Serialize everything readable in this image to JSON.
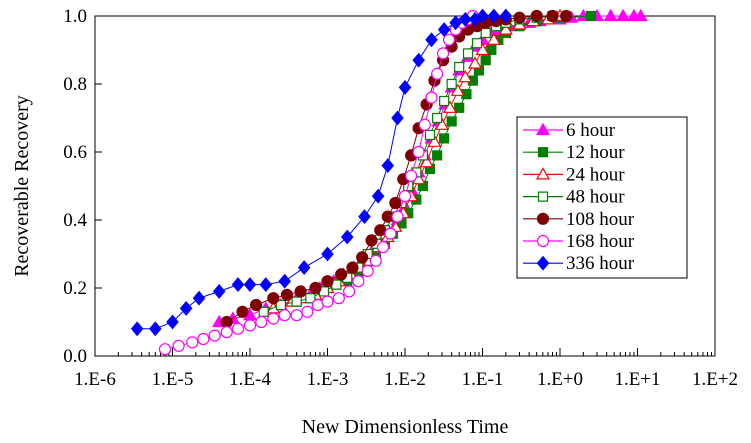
{
  "chart_data": {
    "type": "scatter",
    "title": "",
    "xlabel": "New Dimensionless Time",
    "ylabel": "Recoverable Recovery",
    "x_scale": "log",
    "xlim": [
      1e-06,
      100
    ],
    "ylim": [
      0,
      1
    ],
    "x_tick_labels": [
      "1.E-6",
      "1.E-5",
      "1.E-4",
      "1.E-3",
      "1.E-2",
      "1.E-1",
      "1.E+0",
      "1.E+1",
      "1.E+2"
    ],
    "y_tick_labels": [
      "0.0",
      "0.2",
      "0.4",
      "0.6",
      "0.8",
      "1.0"
    ],
    "y_ticks": [
      0,
      0.2,
      0.4,
      0.6,
      0.8,
      1.0
    ],
    "grid": false,
    "legend_position": "right",
    "series": [
      {
        "name": "6 hour",
        "color": "#ff00ff",
        "marker": "triangle",
        "filled": true,
        "x": [
          4e-05,
          6e-05,
          0.0001,
          0.00016,
          0.00025,
          0.0004,
          0.0006,
          0.0008,
          0.0012,
          0.0016,
          0.0022,
          0.003,
          0.0038,
          0.005,
          0.0065,
          0.008,
          0.01,
          0.012,
          0.015,
          0.018,
          0.022,
          0.027,
          0.033,
          0.04,
          0.05,
          0.065,
          0.08,
          0.1,
          0.13,
          0.17,
          0.22,
          0.3,
          0.4,
          0.55,
          0.75,
          1.0,
          1.4,
          2.0,
          3.0,
          4.5,
          6.5,
          9.0,
          11.0
        ],
        "y": [
          0.1,
          0.11,
          0.12,
          0.14,
          0.15,
          0.17,
          0.18,
          0.2,
          0.22,
          0.24,
          0.26,
          0.28,
          0.31,
          0.33,
          0.36,
          0.4,
          0.44,
          0.49,
          0.54,
          0.59,
          0.64,
          0.69,
          0.74,
          0.79,
          0.84,
          0.88,
          0.91,
          0.93,
          0.95,
          0.96,
          0.97,
          0.975,
          0.98,
          0.985,
          0.99,
          0.99,
          0.995,
          1.0,
          1.0,
          1.0,
          1.0,
          1.0,
          1.0
        ]
      },
      {
        "name": "12 hour",
        "color": "#007f00",
        "marker": "square",
        "filled": true,
        "x": [
          0.00025,
          0.0004,
          0.0006,
          0.0009,
          0.0013,
          0.0018,
          0.0025,
          0.0032,
          0.0042,
          0.0055,
          0.007,
          0.009,
          0.011,
          0.014,
          0.017,
          0.021,
          0.026,
          0.032,
          0.04,
          0.05,
          0.062,
          0.075,
          0.09,
          0.11,
          0.13,
          0.16,
          0.2,
          0.3,
          0.5,
          1.0,
          2.5
        ],
        "y": [
          0.15,
          0.16,
          0.17,
          0.19,
          0.21,
          0.22,
          0.24,
          0.27,
          0.29,
          0.33,
          0.36,
          0.39,
          0.42,
          0.46,
          0.5,
          0.55,
          0.59,
          0.64,
          0.69,
          0.73,
          0.77,
          0.81,
          0.84,
          0.87,
          0.9,
          0.93,
          0.95,
          0.97,
          0.985,
          0.995,
          1.0
        ]
      },
      {
        "name": "24 hour",
        "color": "#ff0000",
        "marker": "triangle",
        "filled": false,
        "x": [
          0.0002,
          0.00035,
          0.0005,
          0.0007,
          0.001,
          0.0014,
          0.002,
          0.0027,
          0.0035,
          0.0045,
          0.006,
          0.0075,
          0.0095,
          0.012,
          0.015,
          0.019,
          0.024,
          0.03,
          0.038,
          0.048,
          0.06,
          0.08,
          0.1,
          0.14,
          0.2,
          0.3,
          0.45,
          0.7,
          1.0
        ],
        "y": [
          0.14,
          0.16,
          0.17,
          0.18,
          0.2,
          0.22,
          0.24,
          0.26,
          0.28,
          0.32,
          0.35,
          0.38,
          0.42,
          0.47,
          0.52,
          0.57,
          0.63,
          0.68,
          0.73,
          0.78,
          0.82,
          0.86,
          0.9,
          0.93,
          0.96,
          0.975,
          0.985,
          0.99,
          1.0
        ]
      },
      {
        "name": "48 hour",
        "color": "#007f00",
        "marker": "square",
        "filled": false,
        "x": [
          0.00015,
          0.00025,
          0.0004,
          0.0006,
          0.0009,
          0.0013,
          0.0018,
          0.0025,
          0.0033,
          0.0043,
          0.0055,
          0.007,
          0.009,
          0.011,
          0.014,
          0.017,
          0.021,
          0.026,
          0.032,
          0.04,
          0.05,
          0.065,
          0.085,
          0.11,
          0.15,
          0.2,
          0.3,
          0.5,
          0.8
        ],
        "y": [
          0.13,
          0.15,
          0.16,
          0.17,
          0.19,
          0.21,
          0.23,
          0.26,
          0.3,
          0.33,
          0.37,
          0.41,
          0.45,
          0.5,
          0.54,
          0.59,
          0.65,
          0.7,
          0.75,
          0.8,
          0.85,
          0.89,
          0.92,
          0.95,
          0.97,
          0.98,
          0.99,
          0.995,
          1.0
        ]
      },
      {
        "name": "108 hour",
        "color": "#7f0000",
        "marker": "circle",
        "filled": true,
        "x": [
          5e-05,
          8e-05,
          0.00012,
          0.0002,
          0.0003,
          0.00045,
          0.0007,
          0.001,
          0.0015,
          0.0021,
          0.0028,
          0.0037,
          0.0048,
          0.006,
          0.0075,
          0.0095,
          0.012,
          0.015,
          0.019,
          0.024,
          0.031,
          0.04,
          0.05,
          0.065,
          0.085,
          0.11,
          0.15,
          0.2,
          0.3,
          0.5,
          0.8,
          1.2
        ],
        "y": [
          0.1,
          0.13,
          0.15,
          0.17,
          0.18,
          0.19,
          0.2,
          0.22,
          0.24,
          0.26,
          0.29,
          0.34,
          0.37,
          0.41,
          0.45,
          0.52,
          0.59,
          0.67,
          0.74,
          0.81,
          0.87,
          0.91,
          0.94,
          0.96,
          0.97,
          0.98,
          0.985,
          0.99,
          0.995,
          1.0,
          1.0,
          1.0
        ]
      },
      {
        "name": "168 hour",
        "color": "#ff00ff",
        "marker": "circle",
        "filled": false,
        "x": [
          8e-06,
          1.2e-05,
          1.8e-05,
          2.5e-05,
          3.5e-05,
          5e-05,
          7e-05,
          0.0001,
          0.00014,
          0.0002,
          0.00028,
          0.0004,
          0.00055,
          0.00075,
          0.001,
          0.0014,
          0.0019,
          0.0025,
          0.0033,
          0.0042,
          0.0052,
          0.0065,
          0.008,
          0.01,
          0.012,
          0.015,
          0.018,
          0.022,
          0.026,
          0.031,
          0.037,
          0.045,
          0.055,
          0.065,
          0.075
        ],
        "y": [
          0.02,
          0.03,
          0.04,
          0.05,
          0.06,
          0.07,
          0.08,
          0.09,
          0.1,
          0.11,
          0.12,
          0.12,
          0.13,
          0.15,
          0.16,
          0.17,
          0.19,
          0.22,
          0.25,
          0.28,
          0.32,
          0.36,
          0.41,
          0.47,
          0.53,
          0.6,
          0.68,
          0.76,
          0.83,
          0.89,
          0.93,
          0.96,
          0.98,
          0.99,
          1.0
        ]
      },
      {
        "name": "336 hour",
        "color": "#0000ff",
        "marker": "diamond",
        "filled": true,
        "x": [
          3.5e-06,
          6e-06,
          1e-05,
          1.5e-05,
          2.2e-05,
          4e-05,
          7e-05,
          0.0001,
          0.00016,
          0.00028,
          0.0005,
          0.001,
          0.0018,
          0.003,
          0.0045,
          0.006,
          0.008,
          0.01,
          0.015,
          0.022,
          0.032,
          0.045,
          0.06,
          0.08,
          0.1,
          0.14,
          0.2
        ],
        "y": [
          0.08,
          0.08,
          0.1,
          0.14,
          0.17,
          0.19,
          0.21,
          0.21,
          0.21,
          0.22,
          0.26,
          0.3,
          0.35,
          0.41,
          0.47,
          0.56,
          0.7,
          0.79,
          0.87,
          0.93,
          0.96,
          0.98,
          0.99,
          0.99,
          1.0,
          1.0,
          1.0
        ]
      }
    ]
  }
}
